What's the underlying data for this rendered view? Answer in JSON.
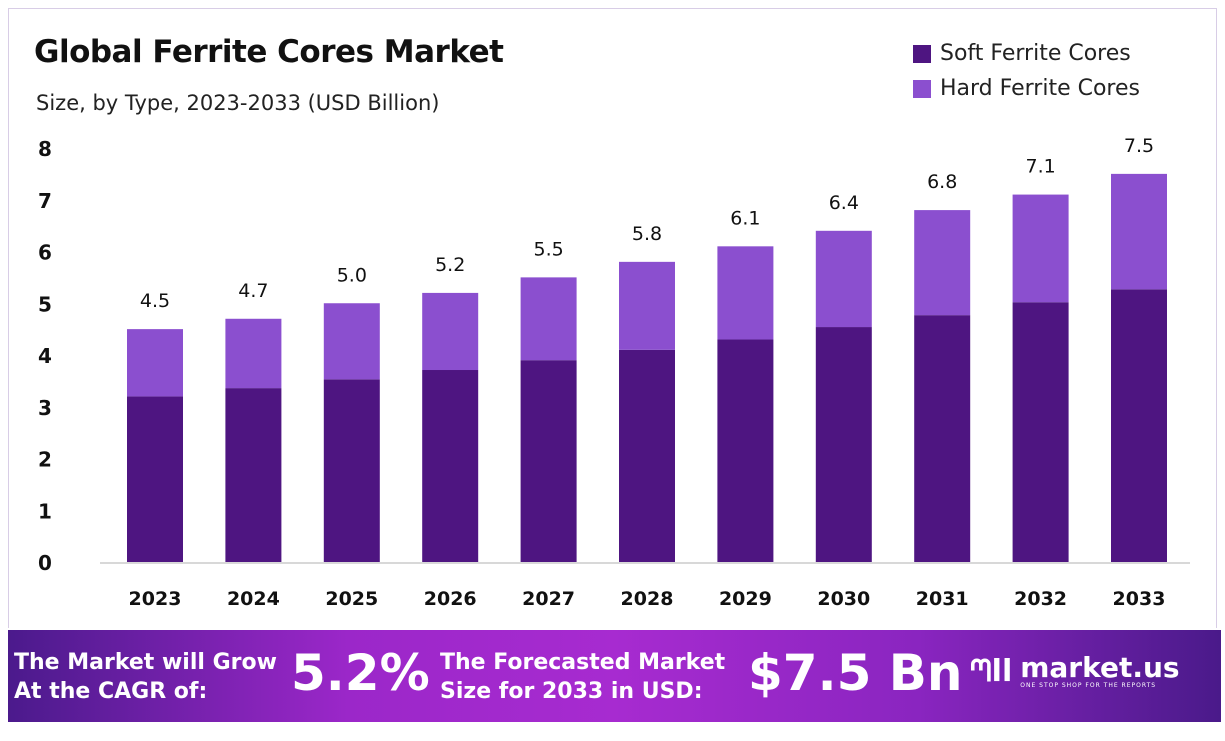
{
  "chart_data": {
    "type": "bar",
    "stacked": true,
    "title": "Global Ferrite Cores Market",
    "subtitle": "Size, by Type, 2023-2033 (USD Billion)",
    "categories": [
      "2023",
      "2024",
      "2025",
      "2026",
      "2027",
      "2028",
      "2029",
      "2030",
      "2031",
      "2032",
      "2033"
    ],
    "series": [
      {
        "name": "Soft Ferrite Cores",
        "color": "#4e1581",
        "values": [
          3.2,
          3.36,
          3.53,
          3.71,
          3.9,
          4.1,
          4.3,
          4.54,
          4.77,
          5.02,
          5.27
        ]
      },
      {
        "name": "Hard Ferrite Cores",
        "color": "#8b4fcf",
        "values": [
          1.3,
          1.34,
          1.47,
          1.49,
          1.6,
          1.7,
          1.8,
          1.86,
          2.03,
          2.08,
          2.23
        ]
      }
    ],
    "totals": [
      "4.5",
      "4.7",
      "5.0",
      "5.2",
      "5.5",
      "5.8",
      "6.1",
      "6.4",
      "6.8",
      "7.1",
      "7.5"
    ],
    "yticks": [
      "0",
      "1",
      "2",
      "3",
      "4",
      "5",
      "6",
      "7",
      "8"
    ],
    "ylim": [
      0,
      8
    ],
    "grid": false,
    "legend": "top-right"
  },
  "banner": {
    "cagr_label_line1": "The Market will Grow",
    "cagr_label_line2": "At the CAGR of:",
    "cagr_value": "5.2%",
    "forecast_label_line1": "The Forecasted Market",
    "forecast_label_line2": "Size for 2033 in USD:",
    "forecast_value": "$7.5 Bn",
    "logo_name": "market.us",
    "logo_tagline": "ONE STOP SHOP FOR THE REPORTS"
  }
}
